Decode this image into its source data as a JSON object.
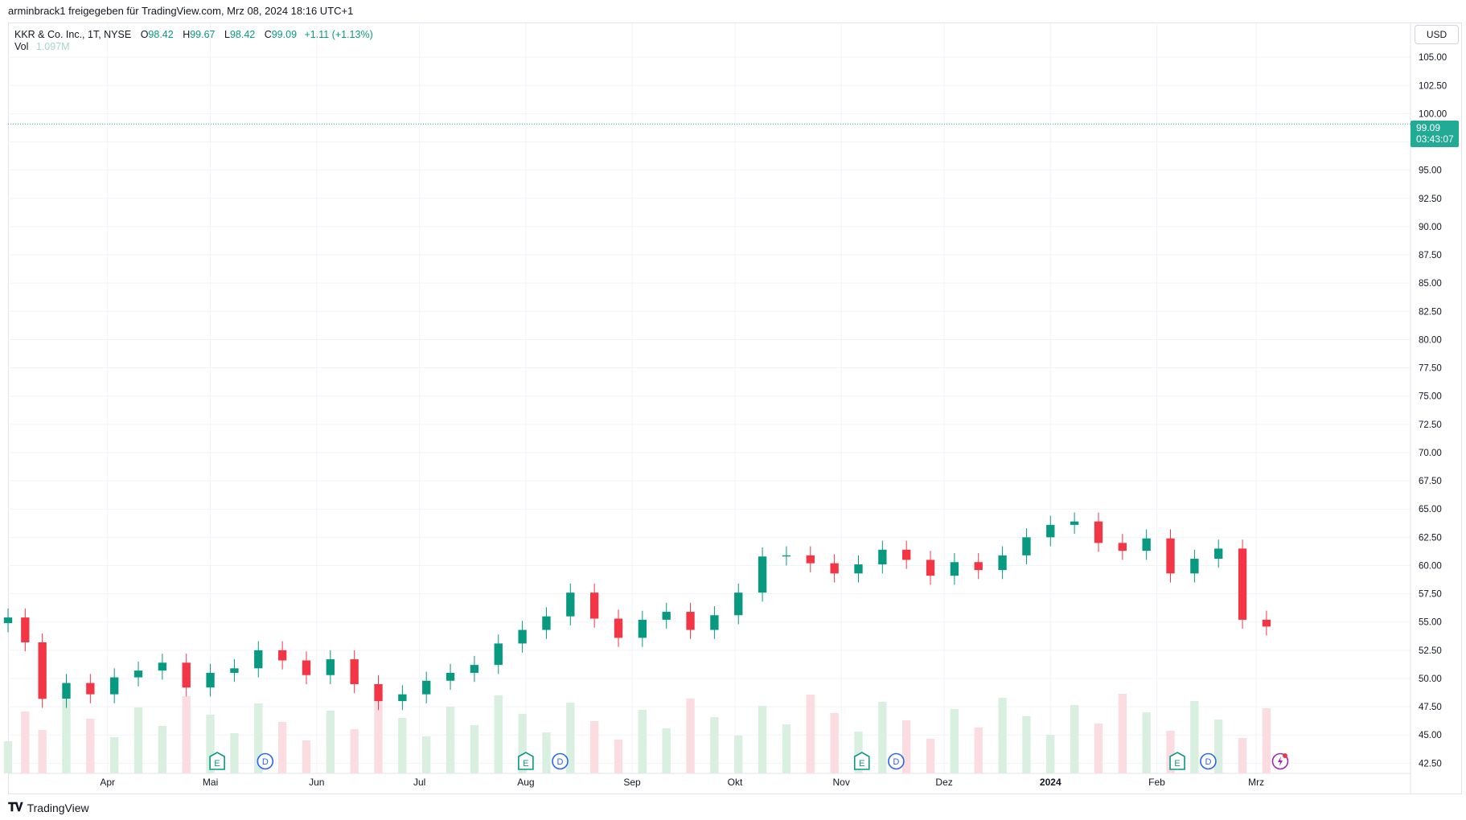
{
  "header": {
    "shared_line": "arminbrack1 freigegeben für TradingView.com, Mrz 08, 2024 18:16 UTC+1"
  },
  "legend": {
    "symbol": "KKR & Co. Inc., 1T, NYSE",
    "o_label": "O",
    "o_value": "98.42",
    "h_label": "H",
    "h_value": "99.67",
    "l_label": "L",
    "l_value": "98.42",
    "c_label": "C",
    "c_value": "99.09",
    "change": "+1.11 (+1.13%)",
    "vol_label": "Vol",
    "vol_value": "1.097M"
  },
  "currency_button": "USD",
  "last_price": {
    "price": "99.09",
    "countdown": "03:43:07",
    "color": "#22ab94"
  },
  "footer": {
    "brand": "TradingView"
  },
  "colors": {
    "up": "#089981",
    "down": "#f23645",
    "volume_up": "#d9efe0",
    "volume_down": "#fbdde1",
    "grid": "#f0f3fa",
    "axis_text": "#131722"
  },
  "event_markers": [
    {
      "type": "E",
      "date": "2023-05-03",
      "icon": "earnings-icon"
    },
    {
      "type": "D",
      "date": "2023-05-17",
      "icon": "dividend-icon"
    },
    {
      "type": "E",
      "date": "2023-08-01",
      "icon": "earnings-icon"
    },
    {
      "type": "D",
      "date": "2023-08-11",
      "icon": "dividend-icon"
    },
    {
      "type": "E",
      "date": "2023-11-07",
      "icon": "earnings-icon"
    },
    {
      "type": "D",
      "date": "2023-11-17",
      "icon": "dividend-icon"
    },
    {
      "type": "E",
      "date": "2024-02-07",
      "icon": "earnings-icon"
    },
    {
      "type": "D",
      "date": "2024-02-16",
      "icon": "dividend-icon"
    },
    {
      "type": "lightning",
      "date": "2024-03-08",
      "icon": "lightning-icon"
    }
  ],
  "chart_data": {
    "type": "candlestick",
    "title": "KKR & Co. Inc., 1T, NYSE",
    "x_range": [
      "2023-03-03",
      "2024-04-15"
    ],
    "ylim": [
      41.6,
      108.0
    ],
    "y_ticks": [
      "42.50",
      "45.00",
      "47.50",
      "50.00",
      "52.50",
      "55.00",
      "57.50",
      "60.00",
      "62.50",
      "65.00",
      "67.50",
      "70.00",
      "72.50",
      "75.00",
      "77.50",
      "80.00",
      "82.50",
      "85.00",
      "87.50",
      "90.00",
      "92.50",
      "95.00",
      "97.50",
      "100.00",
      "102.50",
      "105.00"
    ],
    "x_ticks": [
      {
        "label": "Apr",
        "date": "2023-04-01"
      },
      {
        "label": "Mai",
        "date": "2023-05-01"
      },
      {
        "label": "Jun",
        "date": "2023-06-01"
      },
      {
        "label": "Jul",
        "date": "2023-07-01"
      },
      {
        "label": "Aug",
        "date": "2023-08-01"
      },
      {
        "label": "Sep",
        "date": "2023-09-01"
      },
      {
        "label": "Okt",
        "date": "2023-10-01"
      },
      {
        "label": "Nov",
        "date": "2023-11-01"
      },
      {
        "label": "Dez",
        "date": "2023-12-01"
      },
      {
        "label": "2024",
        "date": "2024-01-01"
      },
      {
        "label": "Feb",
        "date": "2024-02-01"
      },
      {
        "label": "Mrz",
        "date": "2024-03-01"
      }
    ],
    "last_close": 99.09,
    "closes": [
      {
        "date": "2023-03-03",
        "close": 55.4
      },
      {
        "date": "2023-03-08",
        "close": 53.2
      },
      {
        "date": "2023-03-13",
        "close": 48.2
      },
      {
        "date": "2023-03-20",
        "close": 49.6
      },
      {
        "date": "2023-03-27",
        "close": 48.6
      },
      {
        "date": "2023-04-03",
        "close": 50.1
      },
      {
        "date": "2023-04-10",
        "close": 50.7
      },
      {
        "date": "2023-04-17",
        "close": 51.4
      },
      {
        "date": "2023-04-24",
        "close": 49.2
      },
      {
        "date": "2023-05-01",
        "close": 50.5
      },
      {
        "date": "2023-05-08",
        "close": 50.9
      },
      {
        "date": "2023-05-15",
        "close": 52.5
      },
      {
        "date": "2023-05-22",
        "close": 51.6
      },
      {
        "date": "2023-05-29",
        "close": 50.3
      },
      {
        "date": "2023-06-05",
        "close": 51.7
      },
      {
        "date": "2023-06-12",
        "close": 49.5
      },
      {
        "date": "2023-06-19",
        "close": 48.0
      },
      {
        "date": "2023-06-26",
        "close": 48.6
      },
      {
        "date": "2023-07-03",
        "close": 49.8
      },
      {
        "date": "2023-07-10",
        "close": 50.5
      },
      {
        "date": "2023-07-17",
        "close": 51.2
      },
      {
        "date": "2023-07-24",
        "close": 53.1
      },
      {
        "date": "2023-07-31",
        "close": 54.3
      },
      {
        "date": "2023-08-07",
        "close": 55.5
      },
      {
        "date": "2023-08-14",
        "close": 57.6
      },
      {
        "date": "2023-08-21",
        "close": 55.3
      },
      {
        "date": "2023-08-28",
        "close": 53.6
      },
      {
        "date": "2023-09-04",
        "close": 55.2
      },
      {
        "date": "2023-09-11",
        "close": 55.9
      },
      {
        "date": "2023-09-18",
        "close": 54.3
      },
      {
        "date": "2023-09-25",
        "close": 55.6
      },
      {
        "date": "2023-10-02",
        "close": 57.6
      },
      {
        "date": "2023-10-09",
        "close": 60.8
      },
      {
        "date": "2023-10-16",
        "close": 60.9
      },
      {
        "date": "2023-10-23",
        "close": 60.2
      },
      {
        "date": "2023-10-30",
        "close": 59.3
      },
      {
        "date": "2023-11-06",
        "close": 60.1
      },
      {
        "date": "2023-11-13",
        "close": 61.4
      },
      {
        "date": "2023-11-20",
        "close": 60.5
      },
      {
        "date": "2023-11-27",
        "close": 59.1
      },
      {
        "date": "2023-12-04",
        "close": 60.3
      },
      {
        "date": "2023-12-11",
        "close": 59.6
      },
      {
        "date": "2023-12-18",
        "close": 60.9
      },
      {
        "date": "2023-12-25",
        "close": 62.5
      },
      {
        "date": "2024-01-01",
        "close": 63.6
      },
      {
        "date": "2024-01-08",
        "close": 63.9
      },
      {
        "date": "2024-01-15",
        "close": 62.0
      },
      {
        "date": "2024-01-22",
        "close": 61.3
      },
      {
        "date": "2024-01-29",
        "close": 62.4
      },
      {
        "date": "2024-02-05",
        "close": 59.3
      },
      {
        "date": "2024-02-12",
        "close": 60.6
      },
      {
        "date": "2024-02-19",
        "close": 61.5
      },
      {
        "date": "2024-02-26",
        "close": 55.2
      },
      {
        "date": "2024-03-04",
        "close": 54.6
      }
    ]
  }
}
